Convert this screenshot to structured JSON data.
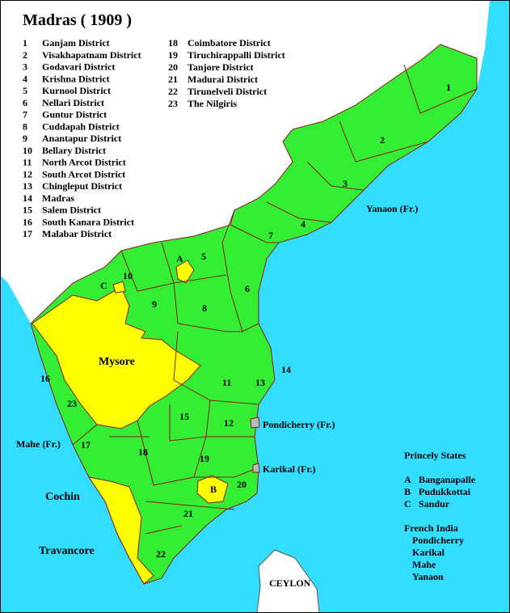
{
  "title": "Madras ( 1909 )",
  "districts": [
    {
      "number": "1",
      "name": "Ganjam District"
    },
    {
      "number": "2",
      "name": "Visakhapatnam District"
    },
    {
      "number": "3",
      "name": "Godavari District"
    },
    {
      "number": "4",
      "name": "Krishna District"
    },
    {
      "number": "5",
      "name": "Kurnool District"
    },
    {
      "number": "6",
      "name": "Nellari District"
    },
    {
      "number": "7",
      "name": "Guntur District"
    },
    {
      "number": "8",
      "name": "Cuddapah District"
    },
    {
      "number": "9",
      "name": "Anantapur District"
    },
    {
      "number": "10",
      "name": "Bellary District"
    },
    {
      "number": "11",
      "name": "North Arcot District"
    },
    {
      "number": "12",
      "name": "South Arcot District"
    },
    {
      "number": "13",
      "name": "Chingleput District"
    },
    {
      "number": "14",
      "name": "Madras"
    },
    {
      "number": "15",
      "name": "Salem District"
    },
    {
      "number": "16",
      "name": "South Kanara District"
    },
    {
      "number": "17",
      "name": "Malabar District"
    },
    {
      "number": "18",
      "name": "Coimbatore District"
    },
    {
      "number": "19",
      "name": "Tiruchirappalli District"
    },
    {
      "number": "20",
      "name": "Tanjore District"
    },
    {
      "number": "21",
      "name": "Madurai District"
    },
    {
      "number": "22",
      "name": "Tirunelveli District"
    },
    {
      "number": "23",
      "name": "The Nilgiris"
    }
  ],
  "map_labels": [
    "1",
    "2",
    "3",
    "4",
    "5",
    "6",
    "7",
    "8",
    "9",
    "10",
    "11",
    "12",
    "13",
    "14",
    "15",
    "16",
    "17",
    "18",
    "19",
    "20",
    "21",
    "22",
    "23",
    "A",
    "B",
    "C"
  ],
  "place_labels": [
    "Mysore",
    "Cochin",
    "Travancore",
    "CEYLON",
    "Yanaon (Fr.)",
    "Pondicherry  (Fr.)",
    "Karikal  (Fr.)",
    "Mahe (Fr.)"
  ],
  "princely_states": {
    "title": "Princely States",
    "items": [
      {
        "key": "A",
        "name": "Banganapalle"
      },
      {
        "key": "B",
        "name": "Pudukkottai"
      },
      {
        "key": "C",
        "name": "Sandur"
      }
    ]
  },
  "french_india": {
    "title": "French India",
    "items": [
      "Pondicherry",
      "Karikal",
      "Mahe",
      "Yanaon"
    ]
  }
}
